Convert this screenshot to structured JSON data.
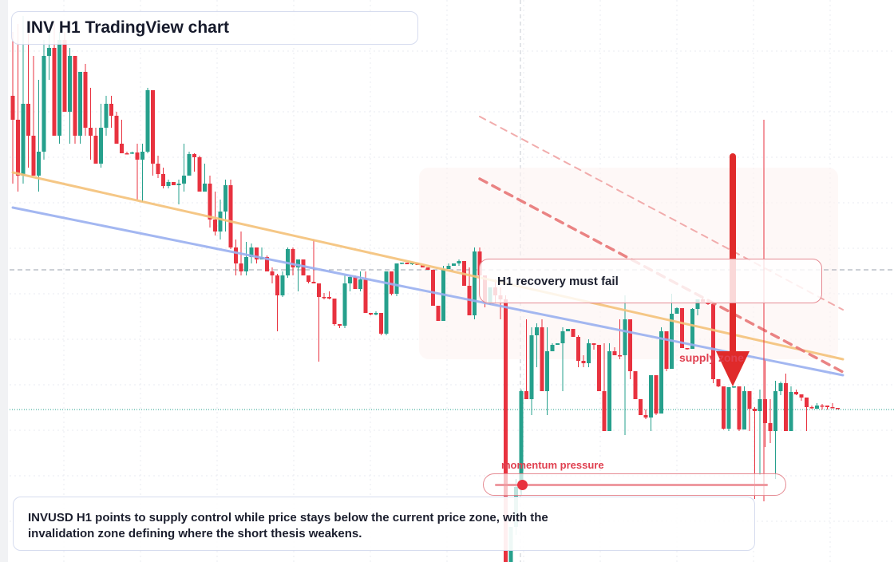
{
  "header": {
    "title": "INV H1 TradingView chart"
  },
  "annotations": {
    "callout": "H1 recovery must fail",
    "supply_label": "supply zone",
    "momentum_label": "momentum pressure",
    "momentum_level": 0.1,
    "summary": "INVUSD H1 points to supply control while price stays below the current price zone, with the invalidation zone defining where the short thesis weakens."
  },
  "colors": {
    "up": "#26a08c",
    "down": "#e8323f",
    "resistance_line": "#f5c27a",
    "trend_line": "#9ab0f0",
    "accent_red": "#e04050"
  },
  "chart_data": {
    "type": "candlestick",
    "symbol": "INVUSD",
    "timeframe": "H1",
    "y_range": [
      0,
      704
    ],
    "ohlc": [
      [
        120,
        40,
        230,
        150
      ],
      [
        150,
        30,
        240,
        220
      ],
      [
        220,
        20,
        230,
        130
      ],
      [
        130,
        40,
        210,
        170
      ],
      [
        170,
        70,
        220,
        220
      ],
      [
        220,
        100,
        240,
        190
      ],
      [
        190,
        50,
        200,
        70
      ],
      [
        70,
        40,
        100,
        60
      ],
      [
        60,
        30,
        170,
        170
      ],
      [
        170,
        40,
        180,
        50
      ],
      [
        50,
        40,
        140,
        140
      ],
      [
        140,
        60,
        180,
        70
      ],
      [
        70,
        70,
        180,
        170
      ],
      [
        170,
        90,
        180,
        90
      ],
      [
        90,
        80,
        170,
        160
      ],
      [
        160,
        110,
        200,
        170
      ],
      [
        170,
        160,
        205,
        205
      ],
      [
        205,
        130,
        210,
        160
      ],
      [
        160,
        120,
        170,
        130
      ],
      [
        130,
        120,
        160,
        145
      ],
      [
        145,
        140,
        180,
        180
      ],
      [
        180,
        150,
        192,
        192
      ],
      [
        192,
        190,
        193,
        192
      ],
      [
        192,
        190,
        193,
        191
      ],
      [
        191,
        180,
        250,
        200
      ],
      [
        200,
        180,
        253,
        190
      ],
      [
        190,
        110,
        192,
        113
      ],
      [
        113,
        113,
        220,
        205
      ],
      [
        205,
        195,
        223,
        218
      ],
      [
        218,
        210,
        236,
        233
      ],
      [
        233,
        225,
        236,
        228
      ],
      [
        228,
        230,
        232,
        232
      ],
      [
        232,
        225,
        256,
        230
      ],
      [
        230,
        180,
        240,
        220
      ],
      [
        220,
        190,
        200,
        193
      ],
      [
        193,
        192,
        215,
        197
      ],
      [
        197,
        195,
        240,
        240
      ],
      [
        240,
        205,
        240,
        230
      ],
      [
        230,
        220,
        285,
        275
      ],
      [
        275,
        240,
        295,
        290
      ],
      [
        290,
        250,
        300,
        265
      ],
      [
        265,
        225,
        290,
        232
      ],
      [
        232,
        225,
        312,
        310
      ],
      [
        310,
        300,
        345,
        330
      ],
      [
        330,
        290,
        345,
        340
      ],
      [
        340,
        303,
        345,
        322
      ],
      [
        322,
        305,
        330,
        310
      ],
      [
        310,
        310,
        330,
        325
      ],
      [
        325,
        310,
        325,
        322
      ],
      [
        322,
        320,
        338,
        340
      ],
      [
        340,
        335,
        355,
        345
      ],
      [
        345,
        343,
        415,
        370
      ],
      [
        370,
        340,
        372,
        345
      ],
      [
        345,
        310,
        348,
        312
      ],
      [
        312,
        310,
        345,
        335
      ],
      [
        335,
        325,
        365,
        325
      ],
      [
        325,
        325,
        345,
        345
      ],
      [
        345,
        345,
        355,
        353
      ],
      [
        353,
        300,
        355,
        355
      ],
      [
        355,
        365,
        453,
        372
      ],
      [
        372,
        367,
        375,
        372
      ],
      [
        372,
        365,
        375,
        374
      ],
      [
        374,
        405,
        408,
        406
      ],
      [
        406,
        406,
        411,
        408
      ],
      [
        408,
        345,
        411,
        355
      ],
      [
        355,
        345,
        365,
        347
      ],
      [
        347,
        345,
        348,
        362
      ],
      [
        362,
        340,
        365,
        350
      ],
      [
        350,
        340,
        365,
        392
      ],
      [
        392,
        394,
        395,
        394
      ],
      [
        394,
        390,
        395,
        392
      ],
      [
        392,
        410,
        420,
        418
      ],
      [
        418,
        340,
        420,
        340
      ],
      [
        340,
        340,
        370,
        368
      ],
      [
        368,
        330,
        371,
        330
      ],
      [
        330,
        330,
        331,
        329
      ],
      [
        329,
        329,
        331,
        331
      ],
      [
        331,
        329,
        332,
        329
      ],
      [
        329,
        329,
        330,
        332
      ],
      [
        332,
        335,
        335,
        335
      ],
      [
        335,
        338,
        338,
        338
      ],
      [
        338,
        382,
        382,
        383
      ],
      [
        383,
        402,
        402,
        402
      ],
      [
        402,
        333,
        337,
        337
      ],
      [
        337,
        330,
        335,
        333
      ],
      [
        333,
        330,
        332,
        330
      ],
      [
        330,
        325,
        333,
        327
      ],
      [
        327,
        355,
        358,
        358
      ],
      [
        358,
        335,
        395,
        395
      ],
      [
        395,
        310,
        400,
        315
      ],
      [
        315,
        310,
        370,
        345
      ],
      [
        345,
        375,
        385,
        379
      ],
      [
        379,
        360,
        382,
        360
      ],
      [
        360,
        350,
        380,
        370
      ],
      [
        370,
        360,
        400,
        375
      ],
      [
        375,
        370,
        704,
        704
      ],
      [
        704,
        660,
        690,
        660
      ],
      [
        660,
        600,
        670,
        610
      ],
      [
        610,
        488,
        620,
        490
      ],
      [
        490,
        400,
        500,
        500
      ],
      [
        500,
        410,
        520,
        420
      ],
      [
        420,
        405,
        460,
        410
      ],
      [
        410,
        400,
        490,
        490
      ],
      [
        490,
        410,
        520,
        440
      ],
      [
        440,
        430,
        432,
        432
      ],
      [
        432,
        430,
        432,
        430
      ],
      [
        430,
        410,
        490,
        415
      ],
      [
        415,
        412,
        412,
        412
      ],
      [
        412,
        422,
        422,
        422
      ],
      [
        422,
        420,
        460,
        452
      ],
      [
        452,
        445,
        460,
        455
      ],
      [
        455,
        425,
        460,
        430
      ],
      [
        430,
        432,
        438,
        432
      ],
      [
        432,
        432,
        490,
        490
      ],
      [
        490,
        430,
        540,
        540
      ],
      [
        540,
        430,
        460,
        440
      ],
      [
        440,
        435,
        440,
        445
      ],
      [
        445,
        400,
        450,
        445
      ],
      [
        445,
        370,
        545,
        400
      ],
      [
        400,
        445,
        475,
        465
      ],
      [
        465,
        470,
        500,
        500
      ],
      [
        500,
        515,
        520,
        520
      ],
      [
        520,
        513,
        525,
        523
      ],
      [
        523,
        470,
        540,
        470
      ],
      [
        470,
        517,
        520,
        518
      ],
      [
        518,
        410,
        430,
        415
      ],
      [
        415,
        450,
        465,
        462
      ],
      [
        462,
        368,
        395,
        393
      ],
      [
        393,
        385,
        388,
        386
      ],
      [
        386,
        406,
        436,
        436
      ],
      [
        436,
        436,
        438,
        437
      ],
      [
        437,
        386,
        388,
        387
      ],
      [
        387,
        375,
        395,
        375
      ],
      [
        375,
        372,
        378,
        378
      ],
      [
        378,
        380,
        382,
        381
      ],
      [
        381,
        430,
        480,
        475
      ],
      [
        475,
        480,
        485,
        484
      ],
      [
        484,
        532,
        538,
        537
      ],
      [
        537,
        485,
        540,
        485
      ],
      [
        485,
        484,
        486,
        484
      ],
      [
        484,
        536,
        540,
        538
      ],
      [
        538,
        484,
        490,
        490
      ],
      [
        490,
        512,
        540,
        512
      ],
      [
        512,
        510,
        625,
        515
      ],
      [
        515,
        488,
        595,
        500
      ],
      [
        500,
        450,
        560,
        530
      ],
      [
        530,
        500,
        555,
        540
      ],
      [
        540,
        477,
        600,
        490
      ],
      [
        490,
        478,
        495,
        480
      ],
      [
        480,
        468,
        540,
        540
      ],
      [
        540,
        484,
        496,
        491
      ],
      [
        491,
        488,
        495,
        494
      ],
      [
        494,
        496,
        502,
        498
      ],
      [
        498,
        500,
        540,
        510
      ],
      [
        510,
        508,
        512,
        510
      ],
      [
        512,
        505,
        510,
        508
      ],
      [
        508,
        506,
        513,
        508
      ],
      [
        508,
        510,
        513,
        510
      ],
      [
        510,
        505,
        511,
        511
      ],
      [
        511,
        511,
        512,
        512
      ]
    ],
    "overlays": [
      {
        "name": "resistance",
        "from": [
          0,
          216
        ],
        "to": [
          160,
          450
        ]
      },
      {
        "name": "trend",
        "from": [
          0,
          260
        ],
        "to": [
          160,
          470
        ]
      },
      {
        "name": "projection-upper",
        "from": [
          90,
          146
        ],
        "to": [
          160,
          388
        ]
      },
      {
        "name": "projection-lower",
        "from": [
          90,
          224
        ],
        "to": [
          160,
          466
        ]
      }
    ],
    "horizontal_levels": [
      {
        "name": "current-price",
        "y": 338
      },
      {
        "name": "invalidation",
        "y": 513
      }
    ]
  }
}
